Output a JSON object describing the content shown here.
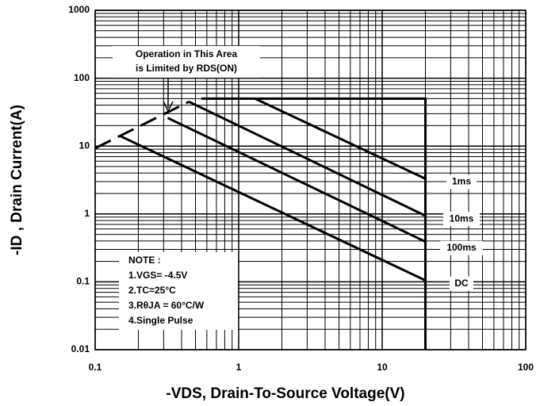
{
  "chart_data": {
    "type": "line",
    "xlabel": "-VDS, Drain-To-Source Voltage(V)",
    "ylabel": "-ID , Drain Current(A)",
    "log_x": true,
    "log_y": true,
    "grid": true,
    "minor_grid": true,
    "xlim": [
      0.1,
      100
    ],
    "ylim": [
      0.01,
      1000
    ],
    "xticks": [
      0.1,
      1,
      10,
      100
    ],
    "yticks": [
      0.01,
      0.1,
      1,
      10,
      100,
      1000
    ],
    "series": [
      {
        "name": "1ms",
        "color": "#000000",
        "x": [
          1.3,
          20
        ],
        "values": [
          50,
          3.3
        ]
      },
      {
        "name": "10ms",
        "color": "#000000",
        "x": [
          0.45,
          20
        ],
        "values": [
          45,
          0.94
        ]
      },
      {
        "name": "100ms",
        "color": "#000000",
        "x": [
          0.32,
          20
        ],
        "values": [
          26,
          0.39
        ]
      },
      {
        "name": "DC",
        "color": "#000000",
        "x": [
          0.15,
          20
        ],
        "values": [
          14,
          0.105
        ]
      }
    ],
    "limit_lines": [
      {
        "dashed": true,
        "color": "#000000",
        "x": [
          0.1,
          0.45
        ],
        "values": [
          9.3,
          45
        ]
      },
      {
        "dashed": false,
        "color": "#000000",
        "x": [
          0.55,
          20,
          20
        ],
        "values": [
          50,
          50,
          0.01
        ]
      }
    ],
    "annotation": [
      "Operation in This Area",
      "is Limited by RDS(ON)"
    ],
    "notes": [
      "NOTE :",
      "1.VGS= -4.5V",
      "2.TC=25°C",
      "3.RθJA = 60°C/W",
      "4.Single Pulse"
    ]
  }
}
